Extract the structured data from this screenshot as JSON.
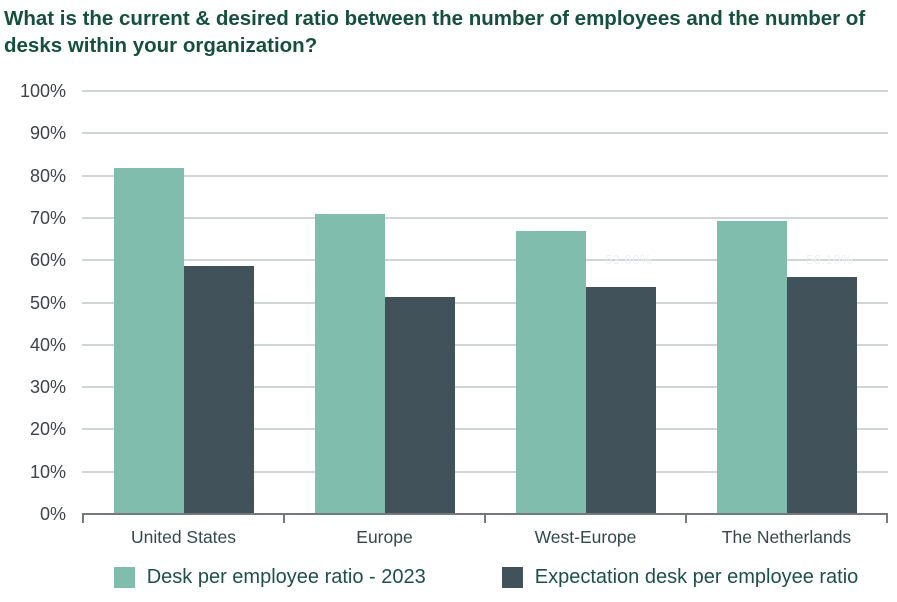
{
  "title": "What is the current  & desired ratio between the number of employees and the number of desks within your organization?",
  "colors": {
    "title": "#14503d",
    "gridline": "#d2d5d5",
    "axis": "#75797d",
    "y_tick_label": "#3d4346",
    "x_tick_label": "#33494a",
    "legend_text": "#1d5046",
    "faint_bar_label": "#ecf1f1"
  },
  "chart_data": {
    "type": "bar",
    "title": "What is the current  & desired ratio between the number of employees and the number of desks within your organization?",
    "categories": [
      "United States",
      "Europe",
      "West-Europe",
      "The Netherlands"
    ],
    "series": [
      {
        "name": "Desk per employee ratio - 2023",
        "color": "#80bdac",
        "values": [
          81.8,
          70.9,
          66.9,
          69.3
        ]
      },
      {
        "name": "Expectation desk per employee ratio",
        "color": "#42525a",
        "values": [
          58.6,
          51.2,
          53.6,
          56.1
        ]
      }
    ],
    "xlabel": "",
    "ylabel": "",
    "ylim": [
      0,
      100
    ],
    "y_ticks": [
      "0%",
      "10%",
      "20%",
      "30%",
      "40%",
      "50%",
      "60%",
      "70%",
      "80%",
      "90%",
      "100%"
    ],
    "grid": true,
    "legend_position": "bottom",
    "faint_bar_value_labels": [
      {
        "series_index": 1,
        "category_index": 2,
        "text": "53.60%"
      },
      {
        "series_index": 1,
        "category_index": 3,
        "text": "56.10%"
      }
    ]
  }
}
